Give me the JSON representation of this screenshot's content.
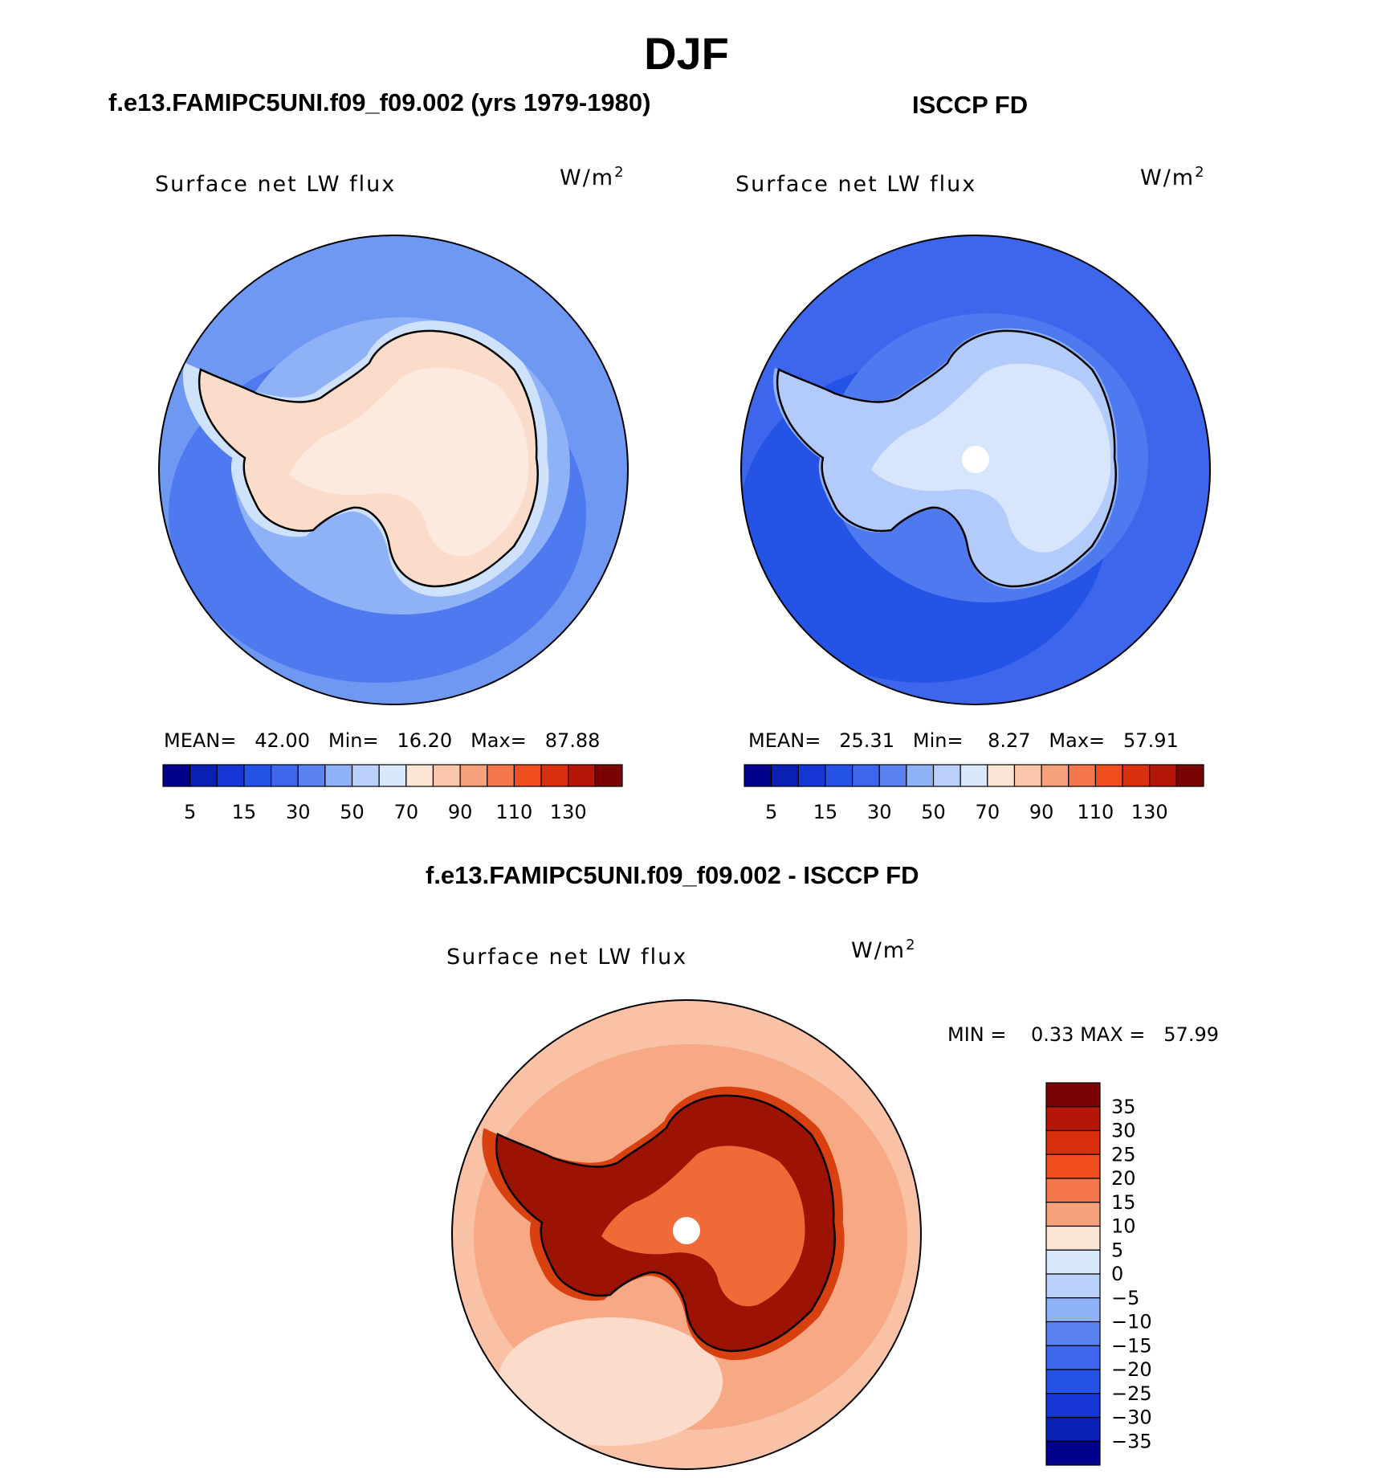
{
  "figure": {
    "title": "DJF"
  },
  "panels": [
    {
      "title": "f.e13.FAMIPC5UNI.f09_f09.002 (yrs 1979-1980)",
      "variable": "Surface net LW flux",
      "units": "W/m",
      "units_sup": "2",
      "stats": {
        "mean_label": "MEAN=",
        "mean": "42.00",
        "min_label": "Min=",
        "min": "16.20",
        "max_label": "Max=",
        "max": "87.88"
      },
      "map_palette": {
        "ocean_far": "#6f98f3",
        "ocean_mid": "#4f79ee",
        "ocean_near": "#8fb1f8",
        "coast": "#cfe2fb",
        "continent": "#fbdccb",
        "interior": "#fdeadf"
      },
      "colorbar_labels": [
        "5",
        "15",
        "30",
        "50",
        "70",
        "90",
        "110",
        "130"
      ]
    },
    {
      "title": "ISCCP FD",
      "variable": "Surface net LW flux",
      "units": "W/m",
      "units_sup": "2",
      "stats": {
        "mean_label": "MEAN=",
        "mean": "25.31",
        "min_label": "Min=",
        "min": "8.27",
        "max_label": "Max=",
        "max": "57.91"
      },
      "map_palette": {
        "ocean_far": "#3d66ec",
        "ocean_mid": "#2553e6",
        "ocean_near": "#4f79ee",
        "coast": "#8fb1f8",
        "continent": "#b3cbfa",
        "interior": "#d7e6fc"
      },
      "colorbar_labels": [
        "5",
        "15",
        "30",
        "50",
        "70",
        "90",
        "110",
        "130"
      ]
    }
  ],
  "difference": {
    "title": "f.e13.FAMIPC5UNI.f09_f09.002 - ISCCP FD",
    "variable": "Surface net LW flux",
    "units": "W/m",
    "units_sup": "2",
    "stats": {
      "min_label": "MIN =",
      "min": "0.33",
      "max_label": "MAX =",
      "max": "57.99"
    },
    "map_palette": {
      "ocean_far": "#f9c1a6",
      "ocean_mid": "#f7a884",
      "ocean_near": "#f48a5d",
      "coast": "#d8400f",
      "continent": "#9c1203",
      "interior": "#f06a38"
    },
    "colorbar_labels": [
      "35",
      "30",
      "25",
      "20",
      "15",
      "10",
      "5",
      "0",
      "−5",
      "−10",
      "−15",
      "−20",
      "−25",
      "−30",
      "−35"
    ]
  },
  "colors": {
    "abs_scale": [
      "#00008b",
      "#0a1fb3",
      "#1535d4",
      "#2553e6",
      "#3d66ec",
      "#5a82f1",
      "#8fb1f8",
      "#b9d0fb",
      "#d9e9fd",
      "#fde5d6",
      "#fbc7ac",
      "#f7a07c",
      "#f3774b",
      "#f04e1e",
      "#d8300c",
      "#b41607",
      "#7a0403"
    ],
    "diff_scale": [
      "#7a0403",
      "#b41607",
      "#d8300c",
      "#f04e1e",
      "#f3774b",
      "#f7a07c",
      "#fde5d6",
      "#d9e9fd",
      "#b9d0fb",
      "#8fb1f8",
      "#5a82f1",
      "#3d66ec",
      "#2553e6",
      "#1535d4",
      "#0a1fb3",
      "#00008b"
    ]
  }
}
